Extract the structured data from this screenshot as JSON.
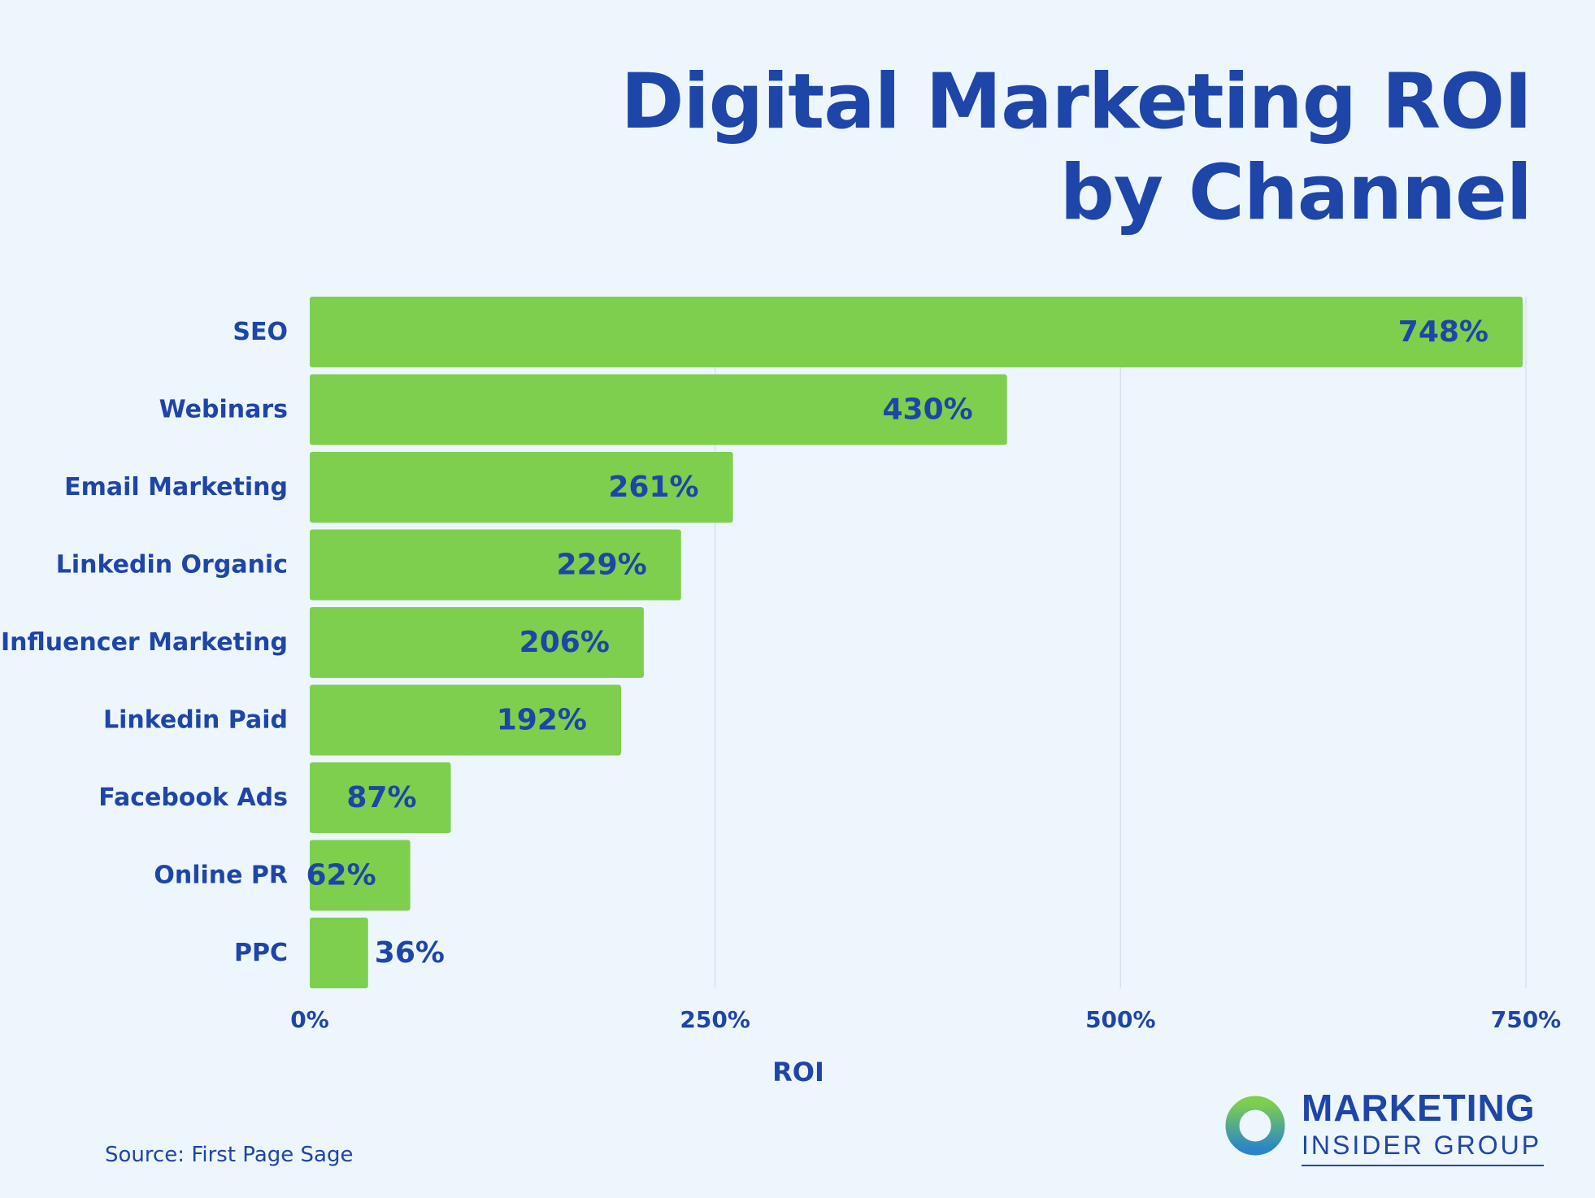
{
  "title": {
    "line1": "Digital Marketing ROI",
    "line2": "by Channel"
  },
  "chart_data": {
    "type": "bar",
    "orientation": "horizontal",
    "categories": [
      "SEO",
      "Webinars",
      "Email Marketing",
      "Linkedin Organic",
      "Influencer Marketing",
      "Linkedin Paid",
      "Facebook Ads",
      "Online PR",
      "PPC"
    ],
    "values": [
      748,
      430,
      261,
      229,
      206,
      192,
      87,
      62,
      36
    ],
    "data_labels": [
      "748%",
      "430%",
      "261%",
      "229%",
      "206%",
      "192%",
      "87%",
      "62%",
      "36%"
    ],
    "xlabel": "ROI",
    "ylabel": "",
    "xlim": [
      0,
      750
    ],
    "ticks": [
      0,
      250,
      500,
      750
    ],
    "tick_labels": [
      "0%",
      "250%",
      "500%",
      "750%"
    ],
    "grid": true,
    "legend": "none",
    "bar_color": "#7ecf4e",
    "text_color": "#1e45a8",
    "grid_color": "#d9e2ec"
  },
  "source": "Source: First Page Sage",
  "logo": {
    "line1": "MARKETING",
    "line2": "INSIDER GROUP",
    "icon": "ring-logo-icon",
    "ring_colors": [
      "#7ecf4e",
      "#2a86c9"
    ]
  }
}
